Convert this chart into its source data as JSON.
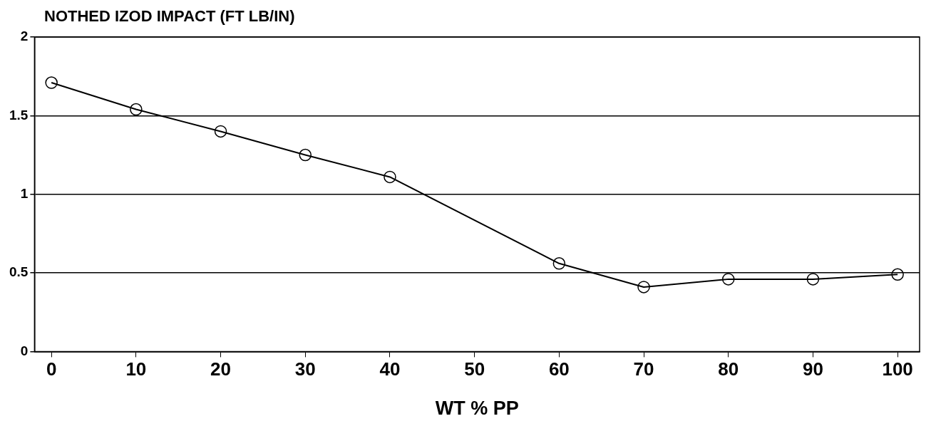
{
  "chart_data": {
    "type": "line",
    "ylabel": "NOTHED IZOD IMPACT (FT LB/IN)",
    "xlabel": "WT % PP",
    "x": [
      0,
      10,
      20,
      30,
      40,
      60,
      70,
      80,
      90,
      100
    ],
    "series": [
      {
        "color": "#000000",
        "values": [
          1.71,
          1.54,
          1.4,
          1.25,
          1.11,
          0.56,
          0.41,
          0.46,
          0.46,
          0.49
        ]
      }
    ],
    "xlim": [
      -2,
      102.6
    ],
    "xticks": [
      0,
      10,
      20,
      30,
      40,
      50,
      60,
      70,
      80,
      90,
      100
    ],
    "ylim": [
      0,
      2
    ],
    "yticks": [
      0,
      0.5,
      1,
      1.5,
      2
    ],
    "grid": "y",
    "legend": false,
    "marker": "circle",
    "line_style": "solid"
  }
}
